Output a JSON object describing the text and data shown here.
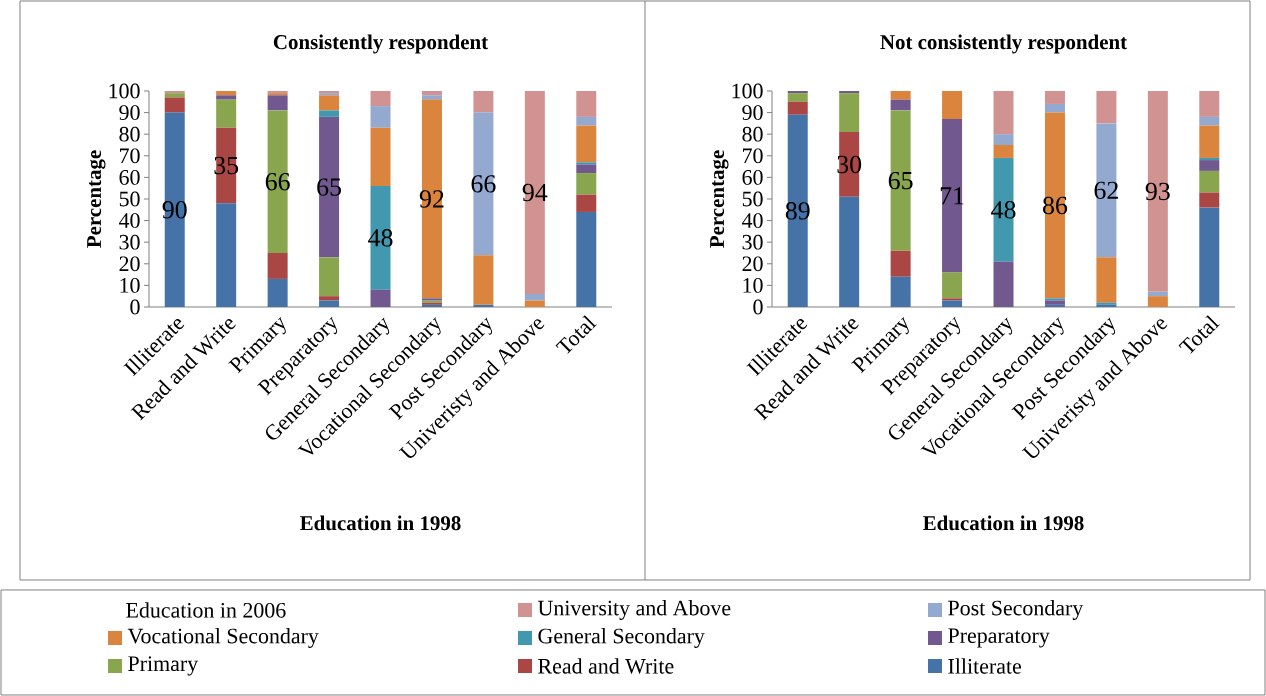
{
  "chart_data": [
    {
      "type": "bar",
      "stacked": true,
      "title": "Consistently respondent",
      "xlabel": "Education in 1998",
      "ylabel": "Percentage",
      "legend_title": "Education in 2006",
      "legend": "bottom",
      "categories": [
        "Illiterate",
        "Read and Write",
        "Primary",
        "Preparatory",
        "General Secondary",
        "Vocational Secondary",
        "Post Secondary",
        "Univeristy and Above",
        "Total"
      ],
      "ylim": [
        0,
        100
      ],
      "yticks": [
        0,
        10,
        20,
        30,
        40,
        50,
        60,
        70,
        80,
        90,
        100
      ],
      "series": [
        {
          "name": "Illiterate",
          "color": "#4572a7",
          "values": [
            90,
            48,
            13,
            3,
            0,
            1,
            1,
            0,
            44
          ],
          "value_labels": [
            "90",
            null,
            null,
            null,
            null,
            null,
            null,
            null,
            null
          ]
        },
        {
          "name": "Read and Write",
          "color": "#aa4643",
          "values": [
            7,
            35,
            12,
            2,
            0,
            1,
            0,
            0,
            8
          ],
          "value_labels": [
            null,
            "35",
            null,
            null,
            null,
            null,
            null,
            null,
            null
          ]
        },
        {
          "name": "Primary",
          "color": "#89a54e",
          "values": [
            2,
            13,
            66,
            18,
            0,
            1,
            0,
            0,
            10
          ],
          "value_labels": [
            null,
            null,
            "66",
            null,
            null,
            null,
            null,
            null,
            null
          ]
        },
        {
          "name": "Preparatory",
          "color": "#71588f",
          "values": [
            0,
            2,
            7,
            65,
            8,
            1,
            0,
            0,
            4
          ],
          "value_labels": [
            null,
            null,
            null,
            "65",
            null,
            null,
            null,
            null,
            null
          ]
        },
        {
          "name": "General Secondary",
          "color": "#4198af",
          "values": [
            0,
            0,
            0,
            3,
            48,
            0,
            0,
            0,
            1
          ],
          "value_labels": [
            null,
            null,
            null,
            null,
            "48",
            null,
            null,
            null,
            null
          ]
        },
        {
          "name": "Vocational Secondary",
          "color": "#db843d",
          "values": [
            0,
            2,
            1,
            7,
            27,
            92,
            23,
            3,
            17
          ],
          "value_labels": [
            null,
            null,
            null,
            null,
            null,
            "92",
            null,
            null,
            null
          ]
        },
        {
          "name": "Post Secondary",
          "color": "#93a9cf",
          "values": [
            0,
            0,
            0,
            1,
            10,
            2,
            66,
            3,
            4
          ],
          "value_labels": [
            null,
            null,
            null,
            null,
            null,
            null,
            "66",
            null,
            null
          ]
        },
        {
          "name": "University and Above",
          "color": "#d19392",
          "values": [
            1,
            0,
            1,
            1,
            7,
            2,
            10,
            94,
            12
          ],
          "value_labels": [
            null,
            null,
            null,
            null,
            null,
            null,
            null,
            "94",
            null
          ]
        }
      ]
    },
    {
      "type": "bar",
      "stacked": true,
      "title": "Not consistently respondent",
      "xlabel": "Education in 1998",
      "ylabel": "Percentage",
      "categories": [
        "Illiterate",
        "Read and Write",
        "Primary",
        "Preparatory",
        "General Secondary",
        "Vocational Secondary",
        "Post Secondary",
        "Univeristy and Above",
        "Total"
      ],
      "ylim": [
        0,
        100
      ],
      "yticks": [
        0,
        10,
        20,
        30,
        40,
        50,
        60,
        70,
        80,
        90,
        100
      ],
      "series": [
        {
          "color": "#4572a7",
          "values": [
            89,
            51,
            14,
            3,
            0,
            1,
            1,
            0,
            46
          ],
          "value_labels": [
            "89",
            null,
            null,
            null,
            null,
            null,
            null,
            null,
            null
          ]
        },
        {
          "color": "#aa4643",
          "values": [
            6,
            30,
            12,
            1,
            0,
            0,
            0,
            0,
            7
          ],
          "value_labels": [
            null,
            "30",
            null,
            null,
            null,
            null,
            null,
            null,
            null
          ]
        },
        {
          "color": "#89a54e",
          "values": [
            4,
            18,
            65,
            12,
            0,
            0,
            0,
            0,
            10
          ],
          "value_labels": [
            null,
            null,
            "65",
            null,
            null,
            null,
            null,
            null,
            null
          ]
        },
        {
          "color": "#71588f",
          "values": [
            1,
            1,
            5,
            71,
            21,
            2,
            0,
            0,
            5
          ],
          "value_labels": [
            null,
            null,
            null,
            "71",
            null,
            null,
            null,
            null,
            null
          ]
        },
        {
          "color": "#4198af",
          "values": [
            0,
            0,
            0,
            0,
            48,
            1,
            1,
            0,
            1
          ],
          "value_labels": [
            null,
            null,
            null,
            null,
            "48",
            null,
            null,
            null,
            null
          ]
        },
        {
          "color": "#db843d",
          "values": [
            0,
            0,
            4,
            13,
            6,
            86,
            21,
            5,
            15
          ],
          "value_labels": [
            null,
            null,
            null,
            null,
            null,
            "86",
            null,
            null,
            null
          ]
        },
        {
          "color": "#93a9cf",
          "values": [
            0,
            0,
            0,
            0,
            5,
            4,
            62,
            2,
            4
          ],
          "value_labels": [
            null,
            null,
            null,
            null,
            null,
            null,
            "62",
            null,
            null
          ]
        },
        {
          "color": "#d19392",
          "values": [
            0,
            0,
            0,
            0,
            20,
            6,
            15,
            93,
            12
          ],
          "value_labels": [
            null,
            null,
            null,
            null,
            null,
            null,
            null,
            "93",
            null
          ]
        }
      ]
    }
  ]
}
